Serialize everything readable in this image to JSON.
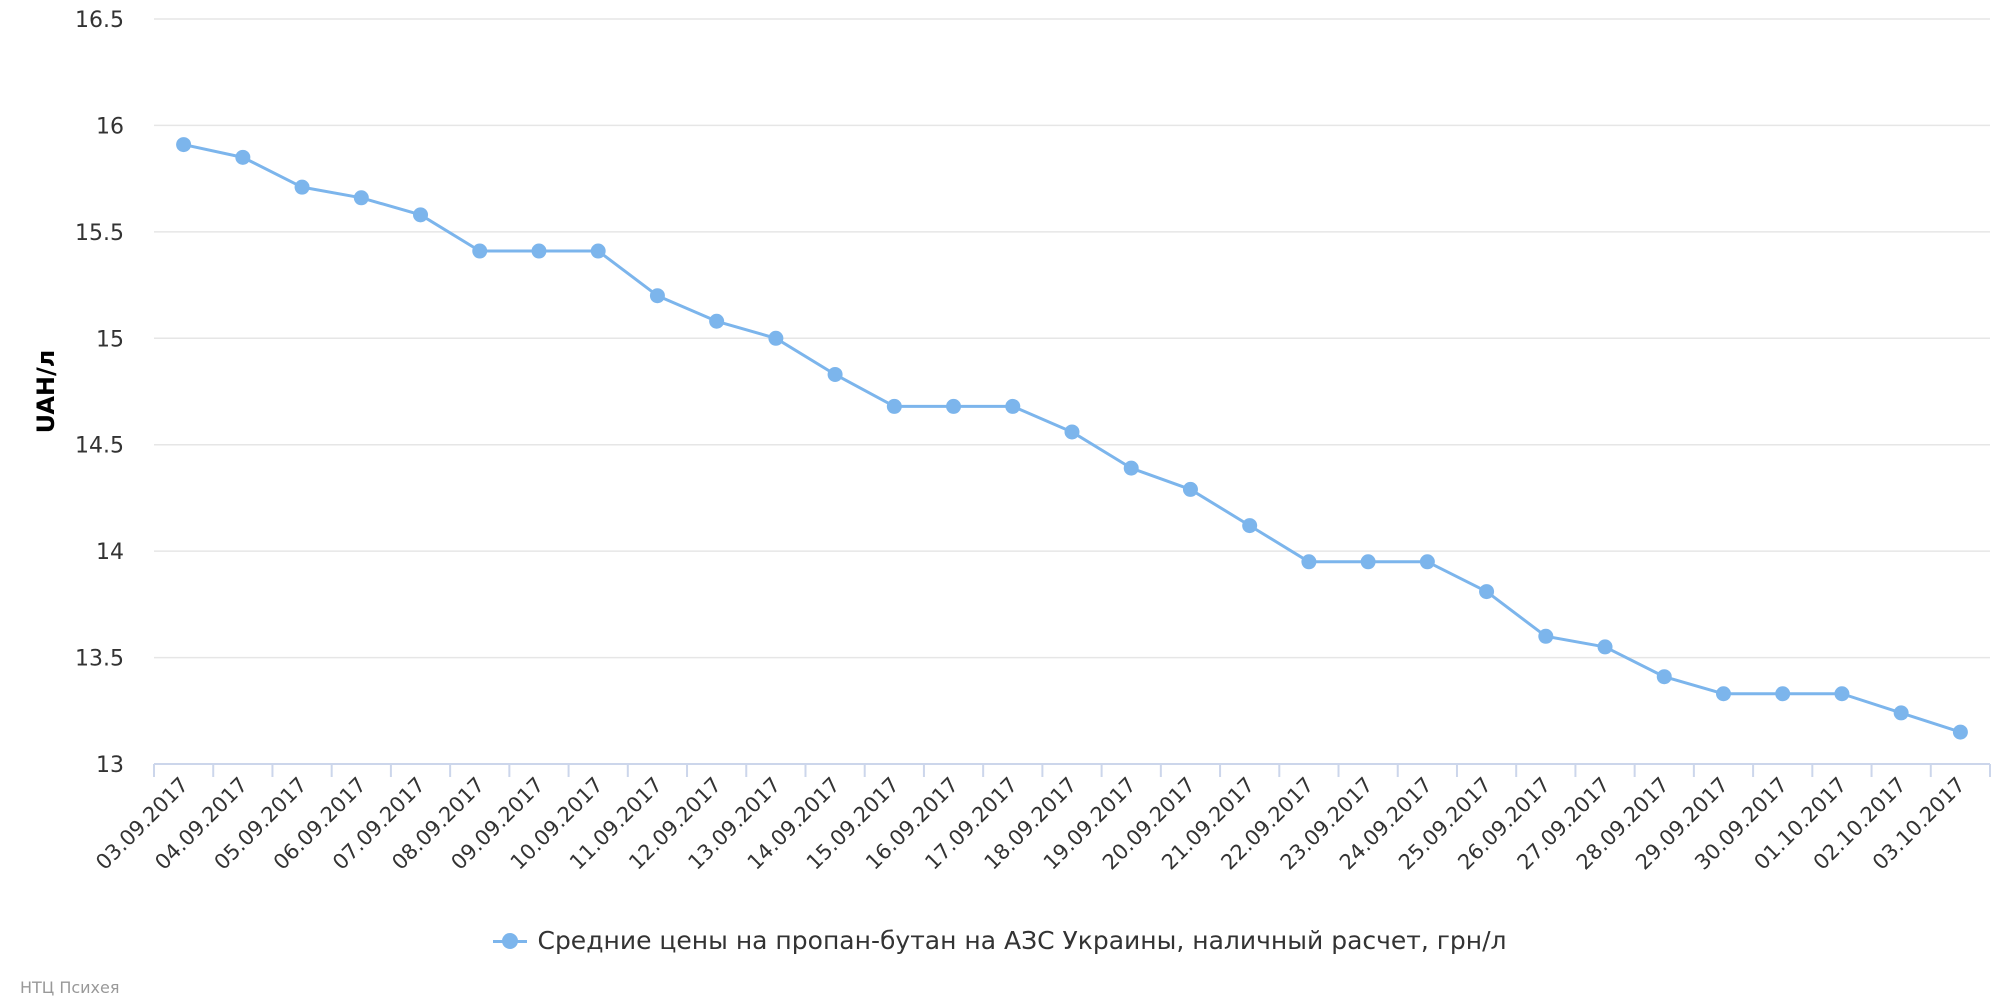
{
  "chart_data": {
    "type": "line",
    "title": "",
    "xlabel": "",
    "ylabel": "UAH/л",
    "ylim": [
      13,
      16.5
    ],
    "yticks": [
      "16.5",
      "16",
      "15.5",
      "15",
      "14.5",
      "14",
      "13.5",
      "13"
    ],
    "grid": true,
    "legend_position": "bottom-center",
    "colors": {
      "series": "#7cb5ec",
      "grid": "#e6e6e6",
      "axis": "#ccd6eb",
      "text": "#333333",
      "tick_text": "#666666"
    },
    "categories": [
      "03.09.2017",
      "04.09.2017",
      "05.09.2017",
      "06.09.2017",
      "07.09.2017",
      "08.09.2017",
      "09.09.2017",
      "10.09.2017",
      "11.09.2017",
      "12.09.2017",
      "13.09.2017",
      "14.09.2017",
      "15.09.2017",
      "16.09.2017",
      "17.09.2017",
      "18.09.2017",
      "19.09.2017",
      "20.09.2017",
      "21.09.2017",
      "22.09.2017",
      "23.09.2017",
      "24.09.2017",
      "25.09.2017",
      "26.09.2017",
      "27.09.2017",
      "28.09.2017",
      "29.09.2017",
      "30.09.2017",
      "01.10.2017",
      "02.10.2017",
      "03.10.2017"
    ],
    "series": [
      {
        "name": "Средние цены на пропан-бутан на АЗС Украины, наличный расчет, грн/л",
        "values": [
          15.91,
          15.85,
          15.71,
          15.66,
          15.58,
          15.41,
          15.41,
          15.41,
          15.2,
          15.08,
          15.0,
          14.83,
          14.68,
          14.68,
          14.68,
          14.56,
          14.39,
          14.29,
          14.12,
          13.95,
          13.95,
          13.95,
          13.81,
          13.6,
          13.55,
          13.41,
          13.33,
          13.33,
          13.33,
          13.24,
          13.15
        ]
      }
    ]
  },
  "credits": "НТЦ Психея"
}
